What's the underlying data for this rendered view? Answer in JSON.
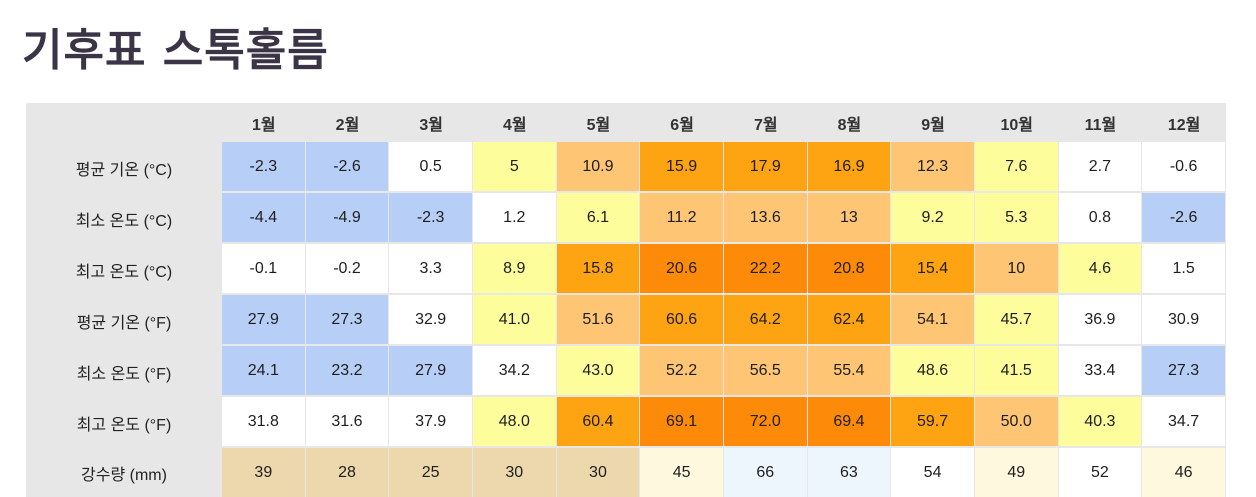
{
  "page": {
    "title": "기후표 스톡홀름"
  },
  "chart_data": {
    "type": "table",
    "title": "기후표 스톡홀름",
    "columns": [
      "1월",
      "2월",
      "3월",
      "4월",
      "5월",
      "6월",
      "7월",
      "8월",
      "9월",
      "10월",
      "11월",
      "12월"
    ],
    "rows": [
      {
        "label": "평균 기온 (°C)",
        "values": [
          "-2.3",
          "-2.6",
          "0.5",
          "5",
          "10.9",
          "15.9",
          "17.9",
          "16.9",
          "12.3",
          "7.6",
          "2.7",
          "-0.6"
        ],
        "colors": [
          "#b7cef7",
          "#b7cef7",
          "#ffffff",
          "#fdfd9c",
          "#fdc574",
          "#fea311",
          "#fea311",
          "#fea311",
          "#fdc574",
          "#fdfd9c",
          "#ffffff",
          "#ffffff"
        ]
      },
      {
        "label": "최소 온도 (°C)",
        "values": [
          "-4.4",
          "-4.9",
          "-2.3",
          "1.2",
          "6.1",
          "11.2",
          "13.6",
          "13",
          "9.2",
          "5.3",
          "0.8",
          "-2.6"
        ],
        "colors": [
          "#b7cef7",
          "#b7cef7",
          "#b7cef7",
          "#ffffff",
          "#fdfd9c",
          "#fdc574",
          "#fdc574",
          "#fdc574",
          "#fdfd9c",
          "#fdfd9c",
          "#ffffff",
          "#b7cef7"
        ]
      },
      {
        "label": "최고 온도 (°C)",
        "values": [
          "-0.1",
          "-0.2",
          "3.3",
          "8.9",
          "15.8",
          "20.6",
          "22.2",
          "20.8",
          "15.4",
          "10",
          "4.6",
          "1.5"
        ],
        "colors": [
          "#ffffff",
          "#ffffff",
          "#ffffff",
          "#fdfd9c",
          "#fea311",
          "#fe8a0a",
          "#fe8a0a",
          "#fe8a0a",
          "#fea311",
          "#fdc574",
          "#fdfd9c",
          "#ffffff"
        ]
      },
      {
        "label": "평균 기온 (°F)",
        "values": [
          "27.9",
          "27.3",
          "32.9",
          "41.0",
          "51.6",
          "60.6",
          "64.2",
          "62.4",
          "54.1",
          "45.7",
          "36.9",
          "30.9"
        ],
        "colors": [
          "#b7cef7",
          "#b7cef7",
          "#ffffff",
          "#fdfd9c",
          "#fdc574",
          "#fea311",
          "#fea311",
          "#fea311",
          "#fdc574",
          "#fdfd9c",
          "#ffffff",
          "#ffffff"
        ]
      },
      {
        "label": "최소 온도 (°F)",
        "values": [
          "24.1",
          "23.2",
          "27.9",
          "34.2",
          "43.0",
          "52.2",
          "56.5",
          "55.4",
          "48.6",
          "41.5",
          "33.4",
          "27.3"
        ],
        "colors": [
          "#b7cef7",
          "#b7cef7",
          "#b7cef7",
          "#ffffff",
          "#fdfd9c",
          "#fdc574",
          "#fdc574",
          "#fdc574",
          "#fdfd9c",
          "#fdfd9c",
          "#ffffff",
          "#b7cef7"
        ]
      },
      {
        "label": "최고 온도 (°F)",
        "values": [
          "31.8",
          "31.6",
          "37.9",
          "48.0",
          "60.4",
          "69.1",
          "72.0",
          "69.4",
          "59.7",
          "50.0",
          "40.3",
          "34.7"
        ],
        "colors": [
          "#ffffff",
          "#ffffff",
          "#ffffff",
          "#fdfd9c",
          "#fea311",
          "#fe8a0a",
          "#fe8a0a",
          "#fe8a0a",
          "#fea311",
          "#fdc574",
          "#fdfd9c",
          "#ffffff"
        ]
      },
      {
        "label": "강수량 (mm)",
        "values": [
          "39",
          "28",
          "25",
          "30",
          "30",
          "45",
          "66",
          "63",
          "54",
          "49",
          "52",
          "46"
        ],
        "colors": [
          "#ecd8ac",
          "#ecd8ac",
          "#ecd8ac",
          "#ecd8ac",
          "#ecd8ac",
          "#fef8df",
          "#eef6fd",
          "#eef6fd",
          "#ffffff",
          "#fef8df",
          "#ffffff",
          "#fef8df"
        ]
      }
    ]
  }
}
